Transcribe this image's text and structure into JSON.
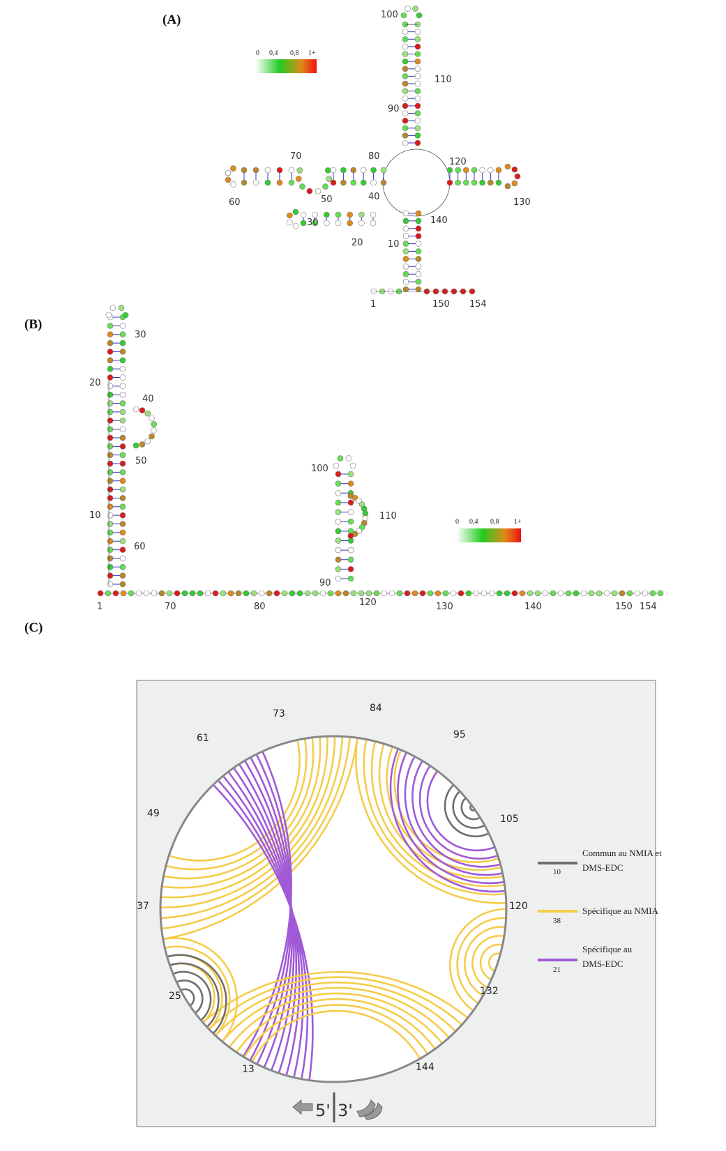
{
  "panels": {
    "a_label": "(A)",
    "b_label": "(B)",
    "c_label": "(C)"
  },
  "colorscale": {
    "ticks": [
      "0",
      "0,4",
      "0,8",
      "1+"
    ],
    "colors": [
      "#ffffff",
      "#22cc22",
      "#e08a1a",
      "#ee1111"
    ]
  },
  "panel_a": {
    "numbers": [
      "100",
      "110",
      "90",
      "80",
      "70",
      "120",
      "60",
      "50",
      "40",
      "30",
      "130",
      "140",
      "20",
      "10",
      "1",
      "150",
      "154"
    ]
  },
  "panel_b": {
    "numbers": [
      "30",
      "20",
      "40",
      "50",
      "10",
      "60",
      "100",
      "110",
      "90",
      "120",
      "1",
      "70",
      "80",
      "130",
      "140",
      "150",
      "154"
    ]
  },
  "panel_c": {
    "positions": [
      "73",
      "84",
      "61",
      "95",
      "49",
      "105",
      "37",
      "120",
      "25",
      "132",
      "13",
      "144"
    ],
    "five_prime": "5'",
    "three_prime": "3'",
    "legend": [
      {
        "label_line1": "Commun au NMIA et",
        "label_line2": "DMS-EDC",
        "count": "10",
        "color": "#6e6e6e"
      },
      {
        "label_line1": "Spécifique au NMIA",
        "label_line2": "",
        "count": "38",
        "color": "#f5cc4a"
      },
      {
        "label_line1": "Spécifique au",
        "label_line2": "DMS-EDC",
        "count": "21",
        "color": "#a05ad8"
      }
    ]
  }
}
